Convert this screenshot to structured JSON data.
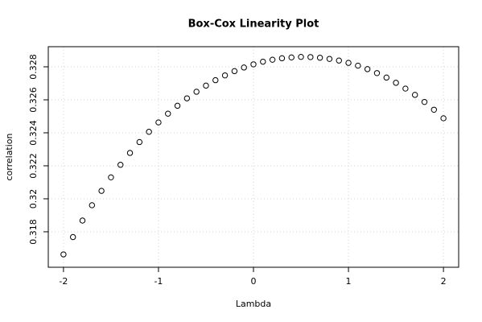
{
  "chart_data": {
    "type": "scatter",
    "title": "Box-Cox Linearity Plot",
    "x_label": "Lambda",
    "y_label": "correlation",
    "x": [
      -2,
      -1.9,
      -1.8,
      -1.7,
      -1.6,
      -1.5,
      -1.4,
      -1.3,
      -1.2,
      -1.1,
      -1,
      -0.9,
      -0.8,
      -0.7,
      -0.6,
      -0.5,
      -0.4,
      -0.3,
      -0.2,
      -0.1,
      0,
      0.1,
      0.2,
      0.3,
      0.4,
      0.5,
      0.6,
      0.7,
      0.8,
      0.9,
      1,
      1.1,
      1.2,
      1.3,
      1.4,
      1.5,
      1.6,
      1.7,
      1.8,
      1.9,
      2
    ],
    "values": [
      0.31663,
      0.31768,
      0.31868,
      0.31961,
      0.32048,
      0.3213,
      0.32206,
      0.32278,
      0.32344,
      0.32406,
      0.32463,
      0.32516,
      0.32564,
      0.32609,
      0.32649,
      0.32686,
      0.32719,
      0.32748,
      0.32774,
      0.32796,
      0.32815,
      0.32831,
      0.32843,
      0.32852,
      0.32857,
      0.3286,
      0.32859,
      0.32855,
      0.32848,
      0.32838,
      0.32824,
      0.32807,
      0.32786,
      0.32762,
      0.32735,
      0.32703,
      0.32668,
      0.3263,
      0.32587,
      0.3254,
      0.32488
    ],
    "color": "#000000",
    "xlim": [
      -2.16,
      2.16
    ],
    "xticks": [
      -2,
      -1,
      0,
      1,
      2
    ],
    "ylim": [
      0.31585,
      0.32922
    ],
    "yticks": [
      0.318,
      0.32,
      0.322,
      0.324,
      0.326,
      0.328
    ],
    "grid": true
  }
}
